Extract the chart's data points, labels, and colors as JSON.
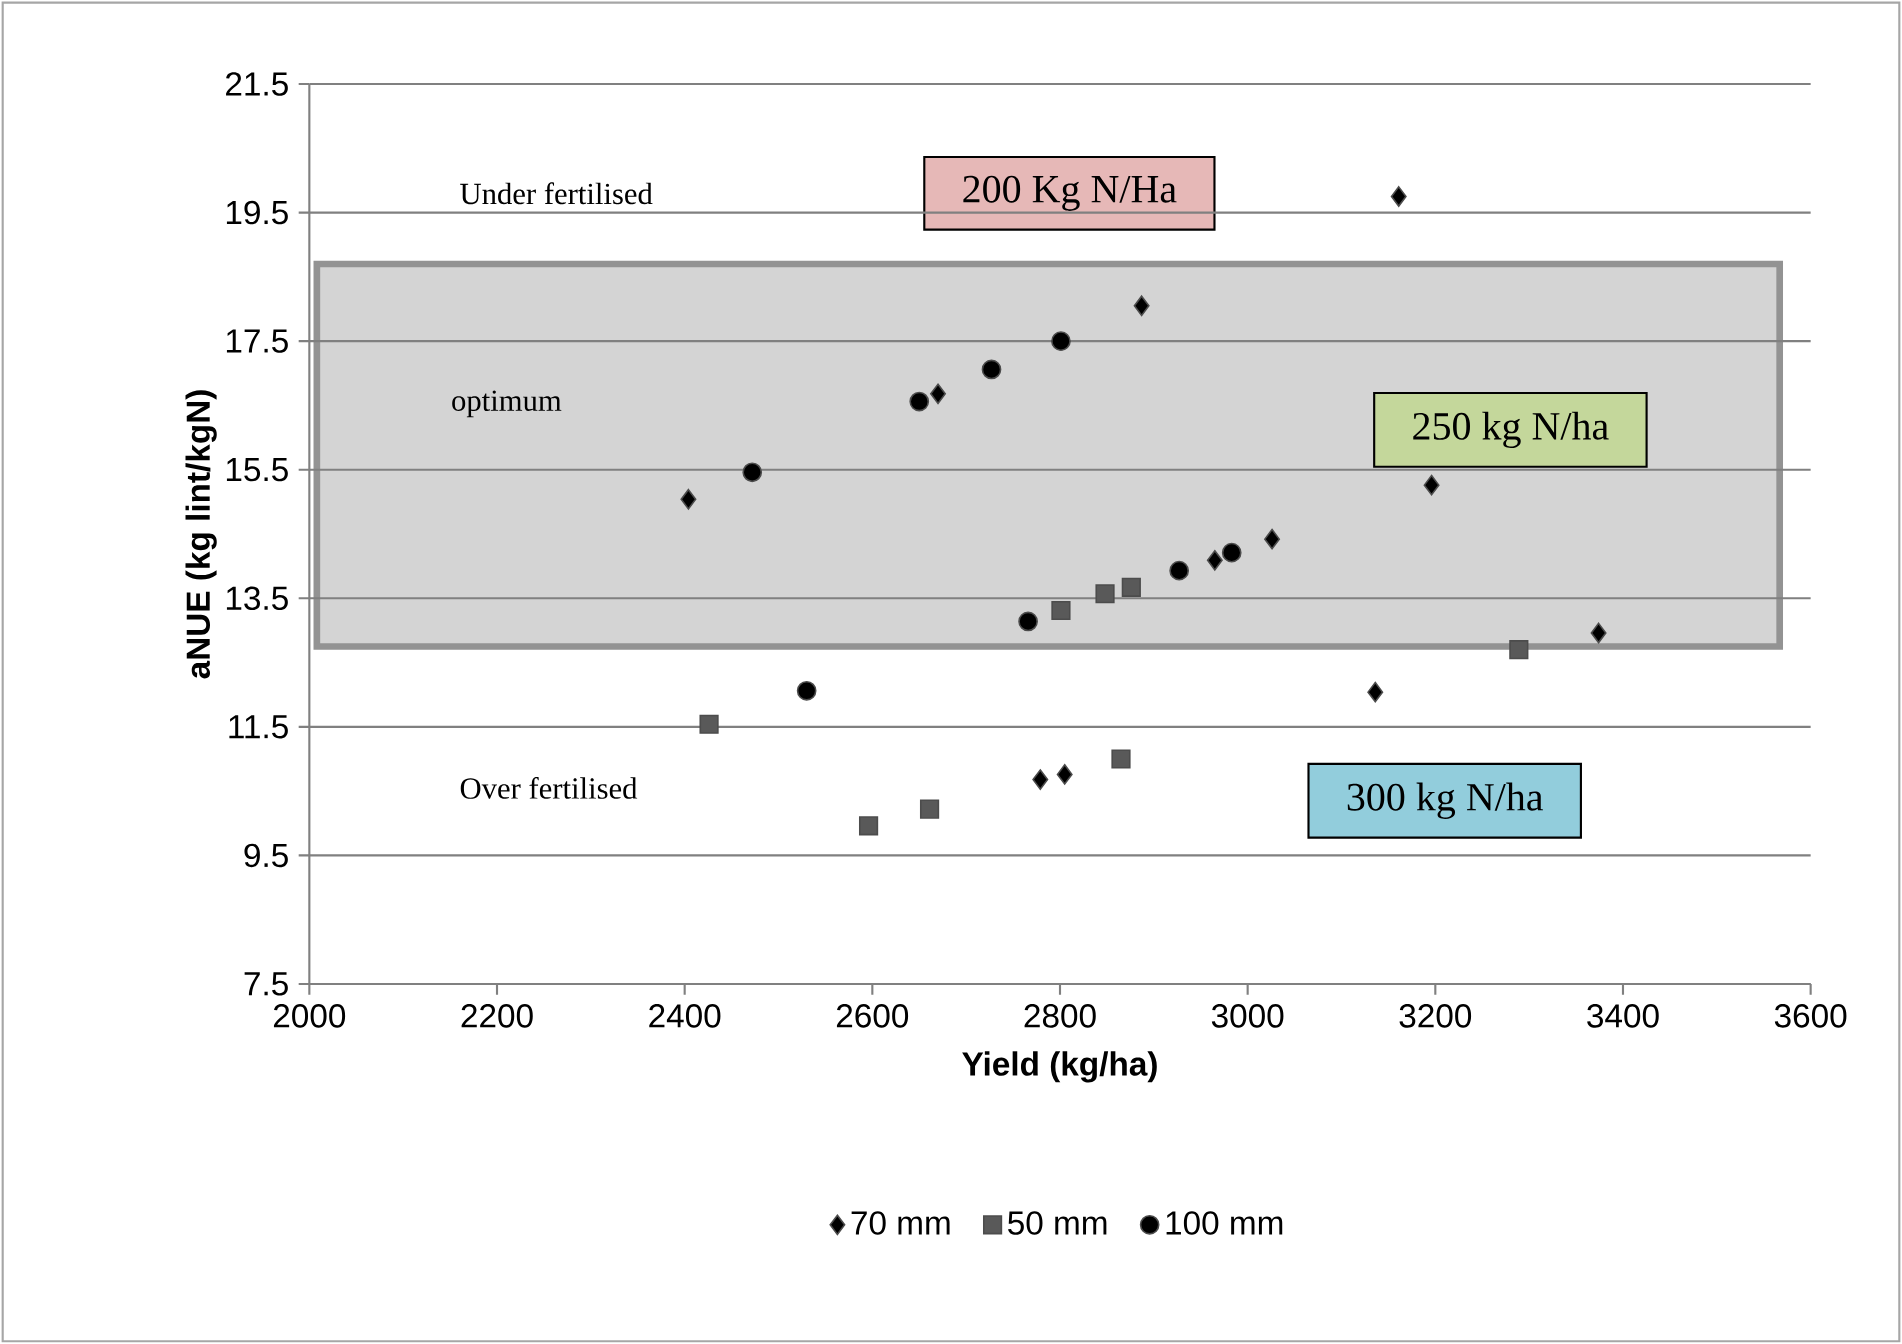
{
  "chart_data": {
    "type": "scatter",
    "xlabel": "Yield (kg/ha)",
    "ylabel": "aNUE (kg lint/kgN)",
    "xlim": [
      2000,
      3600
    ],
    "ylim": [
      7.5,
      21.5
    ],
    "xticks": [
      2000,
      2200,
      2400,
      2600,
      2800,
      3000,
      3200,
      3400,
      3600
    ],
    "yticks": [
      7.5,
      9.5,
      11.5,
      13.5,
      15.5,
      17.5,
      19.5,
      21.5
    ],
    "grid": "y",
    "legend": "bottom",
    "bands": [
      {
        "axis": "y",
        "from": 12.75,
        "to": 18.7,
        "label": "optimum",
        "color": "#d4d4d4"
      }
    ],
    "annotations": [
      "Under fertilised",
      "Over fertilised",
      "200 Kg N/Ha",
      "250 kg N/ha",
      "300 kg N/ha"
    ],
    "series": [
      {
        "name": "70 mm",
        "color": "#000000",
        "marker": "diamond",
        "x": [
          2404,
          2670,
          2779,
          2805,
          2887,
          2965,
          3026,
          3136,
          3161,
          3196,
          3374
        ],
        "values": [
          15.04,
          16.68,
          10.68,
          10.76,
          18.05,
          14.09,
          14.42,
          12.04,
          19.75,
          15.26,
          12.96
        ]
      },
      {
        "name": "50 mm",
        "color": "#595959",
        "marker": "square",
        "x": [
          2426,
          2596,
          2661,
          2801,
          2848,
          2865,
          2876,
          3289
        ],
        "values": [
          11.54,
          9.96,
          10.22,
          13.31,
          13.57,
          11.0,
          13.67,
          12.7
        ]
      },
      {
        "name": "100 mm",
        "color": "#000000",
        "marker": "circle",
        "x": [
          2472,
          2530,
          2650,
          2727,
          2766,
          2801,
          2927,
          2983
        ],
        "values": [
          15.46,
          12.06,
          16.56,
          17.06,
          13.14,
          17.5,
          13.93,
          14.21
        ]
      }
    ]
  }
}
